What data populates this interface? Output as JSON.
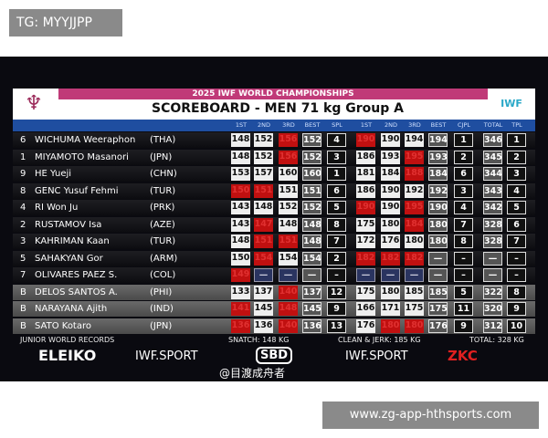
{
  "overlay": {
    "tag": "TG: MYYJJPP",
    "site": "www.zg-app-hthsports.com"
  },
  "header": {
    "event": "2025 IWF WORLD CHAMPIONSHIPS",
    "title": "SCOREBOARD - MEN 71 kg Group A",
    "iwf_logo": "IWF"
  },
  "columns": [
    "1ST",
    "2ND",
    "3RD",
    "BEST",
    "SPL",
    "1ST",
    "2ND",
    "3RD",
    "BEST",
    "CJPL",
    "TOTAL",
    "TPL"
  ],
  "colors": {
    "good": "#eeeeee",
    "fail": "#c01010",
    "header_blue": "#1f4ea0",
    "pink": "#c03a78"
  },
  "rows": [
    {
      "lot": "6",
      "name": "WICHUMA Weeraphon",
      "nation": "(THA)",
      "sn": [
        [
          "148",
          "good"
        ],
        [
          "152",
          "good"
        ],
        [
          "156",
          "fail"
        ]
      ],
      "sbest": "152",
      "spl": "4",
      "cj": [
        [
          "190",
          "fail"
        ],
        [
          "190",
          "good"
        ],
        [
          "194",
          "good"
        ]
      ],
      "cbest": "194",
      "cjpl": "1",
      "total": "346",
      "tpl": "1",
      "group": "dark"
    },
    {
      "lot": "1",
      "name": "MIYAMOTO Masanori",
      "nation": "(JPN)",
      "sn": [
        [
          "148",
          "good"
        ],
        [
          "152",
          "good"
        ],
        [
          "156",
          "fail"
        ]
      ],
      "sbest": "152",
      "spl": "3",
      "cj": [
        [
          "186",
          "good"
        ],
        [
          "193",
          "good"
        ],
        [
          "195",
          "fail"
        ]
      ],
      "cbest": "193",
      "cjpl": "2",
      "total": "345",
      "tpl": "2",
      "group": "dark"
    },
    {
      "lot": "9",
      "name": "HE Yueji",
      "nation": "(CHN)",
      "sn": [
        [
          "153",
          "good"
        ],
        [
          "157",
          "good"
        ],
        [
          "160",
          "good"
        ]
      ],
      "sbest": "160",
      "spl": "1",
      "cj": [
        [
          "181",
          "good"
        ],
        [
          "184",
          "good"
        ],
        [
          "188",
          "fail"
        ]
      ],
      "cbest": "184",
      "cjpl": "6",
      "total": "344",
      "tpl": "3",
      "group": "dark"
    },
    {
      "lot": "8",
      "name": "GENC Yusuf Fehmi",
      "nation": "(TUR)",
      "sn": [
        [
          "150",
          "fail"
        ],
        [
          "151",
          "fail"
        ],
        [
          "151",
          "good"
        ]
      ],
      "sbest": "151",
      "spl": "6",
      "cj": [
        [
          "186",
          "good"
        ],
        [
          "190",
          "good"
        ],
        [
          "192",
          "good"
        ]
      ],
      "cbest": "192",
      "cjpl": "3",
      "total": "343",
      "tpl": "4",
      "group": "dark"
    },
    {
      "lot": "4",
      "name": "RI Won Ju",
      "nation": "(PRK)",
      "sn": [
        [
          "143",
          "good"
        ],
        [
          "148",
          "good"
        ],
        [
          "152",
          "good"
        ]
      ],
      "sbest": "152",
      "spl": "5",
      "cj": [
        [
          "190",
          "fail"
        ],
        [
          "190",
          "good"
        ],
        [
          "195",
          "fail"
        ]
      ],
      "cbest": "190",
      "cjpl": "4",
      "total": "342",
      "tpl": "5",
      "group": "dark"
    },
    {
      "lot": "2",
      "name": "RUSTAMOV Isa",
      "nation": "(AZE)",
      "sn": [
        [
          "143",
          "good"
        ],
        [
          "147",
          "fail"
        ],
        [
          "148",
          "good"
        ]
      ],
      "sbest": "148",
      "spl": "8",
      "cj": [
        [
          "175",
          "good"
        ],
        [
          "180",
          "good"
        ],
        [
          "184",
          "fail"
        ]
      ],
      "cbest": "180",
      "cjpl": "7",
      "total": "328",
      "tpl": "6",
      "group": "dark"
    },
    {
      "lot": "3",
      "name": "KAHRIMAN Kaan",
      "nation": "(TUR)",
      "sn": [
        [
          "148",
          "good"
        ],
        [
          "151",
          "fail"
        ],
        [
          "151",
          "fail"
        ]
      ],
      "sbest": "148",
      "spl": "7",
      "cj": [
        [
          "172",
          "good"
        ],
        [
          "176",
          "good"
        ],
        [
          "180",
          "good"
        ]
      ],
      "cbest": "180",
      "cjpl": "8",
      "total": "328",
      "tpl": "7",
      "group": "dark"
    },
    {
      "lot": "5",
      "name": "SAHAKYAN Gor",
      "nation": "(ARM)",
      "sn": [
        [
          "150",
          "good"
        ],
        [
          "154",
          "fail"
        ],
        [
          "154",
          "good"
        ]
      ],
      "sbest": "154",
      "spl": "2",
      "cj": [
        [
          "182",
          "fail"
        ],
        [
          "182",
          "fail"
        ],
        [
          "182",
          "fail"
        ]
      ],
      "cbest": "—",
      "cjpl": "–",
      "total": "—",
      "tpl": "–",
      "group": "dark"
    },
    {
      "lot": "7",
      "name": "OLIVARES PAEZ S.",
      "nation": "(COL)",
      "sn": [
        [
          "149",
          "fail"
        ],
        [
          "—",
          "none"
        ],
        [
          "—",
          "none"
        ]
      ],
      "sbest": "—",
      "spl": "–",
      "cj": [
        [
          "—",
          "none"
        ],
        [
          "—",
          "none"
        ],
        [
          "—",
          "none"
        ]
      ],
      "cbest": "—",
      "cjpl": "–",
      "total": "—",
      "tpl": "–",
      "group": "dark"
    },
    {
      "lot": "B",
      "name": "DELOS SANTOS A.",
      "nation": "(PHI)",
      "sn": [
        [
          "133",
          "good"
        ],
        [
          "137",
          "good"
        ],
        [
          "140",
          "fail"
        ]
      ],
      "sbest": "137",
      "spl": "12",
      "cj": [
        [
          "175",
          "good"
        ],
        [
          "180",
          "good"
        ],
        [
          "185",
          "good"
        ]
      ],
      "cbest": "185",
      "cjpl": "5",
      "total": "322",
      "tpl": "8",
      "group": "b"
    },
    {
      "lot": "B",
      "name": "NARAYANA Ajith",
      "nation": "(IND)",
      "sn": [
        [
          "141",
          "fail"
        ],
        [
          "145",
          "good"
        ],
        [
          "148",
          "fail"
        ]
      ],
      "sbest": "145",
      "spl": "9",
      "cj": [
        [
          "166",
          "good"
        ],
        [
          "171",
          "good"
        ],
        [
          "175",
          "good"
        ]
      ],
      "cbest": "175",
      "cjpl": "11",
      "total": "320",
      "tpl": "9",
      "group": "b"
    },
    {
      "lot": "B",
      "name": "SATO Kotaro",
      "nation": "(JPN)",
      "sn": [
        [
          "136",
          "fail"
        ],
        [
          "136",
          "good"
        ],
        [
          "140",
          "fail"
        ]
      ],
      "sbest": "136",
      "spl": "13",
      "cj": [
        [
          "176",
          "good"
        ],
        [
          "180",
          "fail"
        ],
        [
          "180",
          "fail"
        ]
      ],
      "cbest": "176",
      "cjpl": "9",
      "total": "312",
      "tpl": "10",
      "group": "b"
    }
  ],
  "footer": {
    "records_label": "JUNIOR WORLD RECORDS",
    "snatch": "SNATCH: 148 KG",
    "cj": "CLEAN & JERK: 185 KG",
    "total": "TOTAL: 328 KG",
    "sponsors": [
      "ELEIKO",
      "IWF.SPORT",
      "SBD",
      "IWF.SPORT",
      "ZKC"
    ],
    "watermark": "@目渡成舟者"
  }
}
